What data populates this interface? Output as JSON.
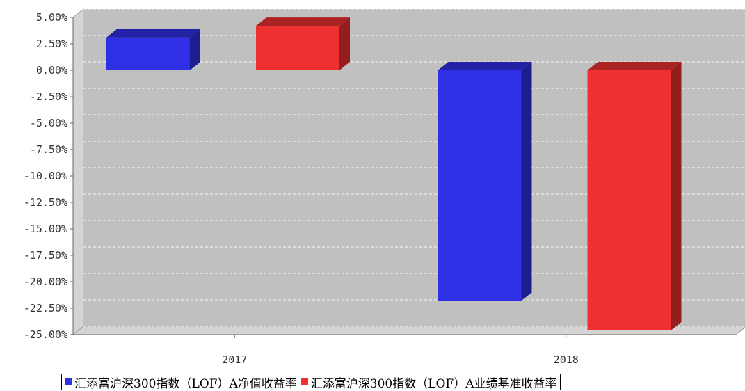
{
  "chart_data": {
    "type": "bar",
    "categories": [
      "2017",
      "2018"
    ],
    "series": [
      {
        "name": "汇添富沪深300指数（LOF）A净值收益率",
        "values": [
          3.1,
          -21.8
        ],
        "color": "#2f2fe6"
      },
      {
        "name": "汇添富沪深300指数（LOF）A业绩基准收益率",
        "values": [
          4.2,
          -24.6
        ],
        "color": "#ee3030"
      }
    ],
    "yticks": [
      "5.00%",
      "2.50%",
      "0.00%",
      "-2.50%",
      "-5.00%",
      "-7.50%",
      "-10.00%",
      "-12.50%",
      "-15.00%",
      "-17.50%",
      "-20.00%",
      "-22.50%",
      "-25.00%"
    ],
    "ylim": [
      -25,
      5
    ],
    "grid": true,
    "legend_position": "bottom",
    "title": "",
    "xlabel": "",
    "ylabel": ""
  }
}
